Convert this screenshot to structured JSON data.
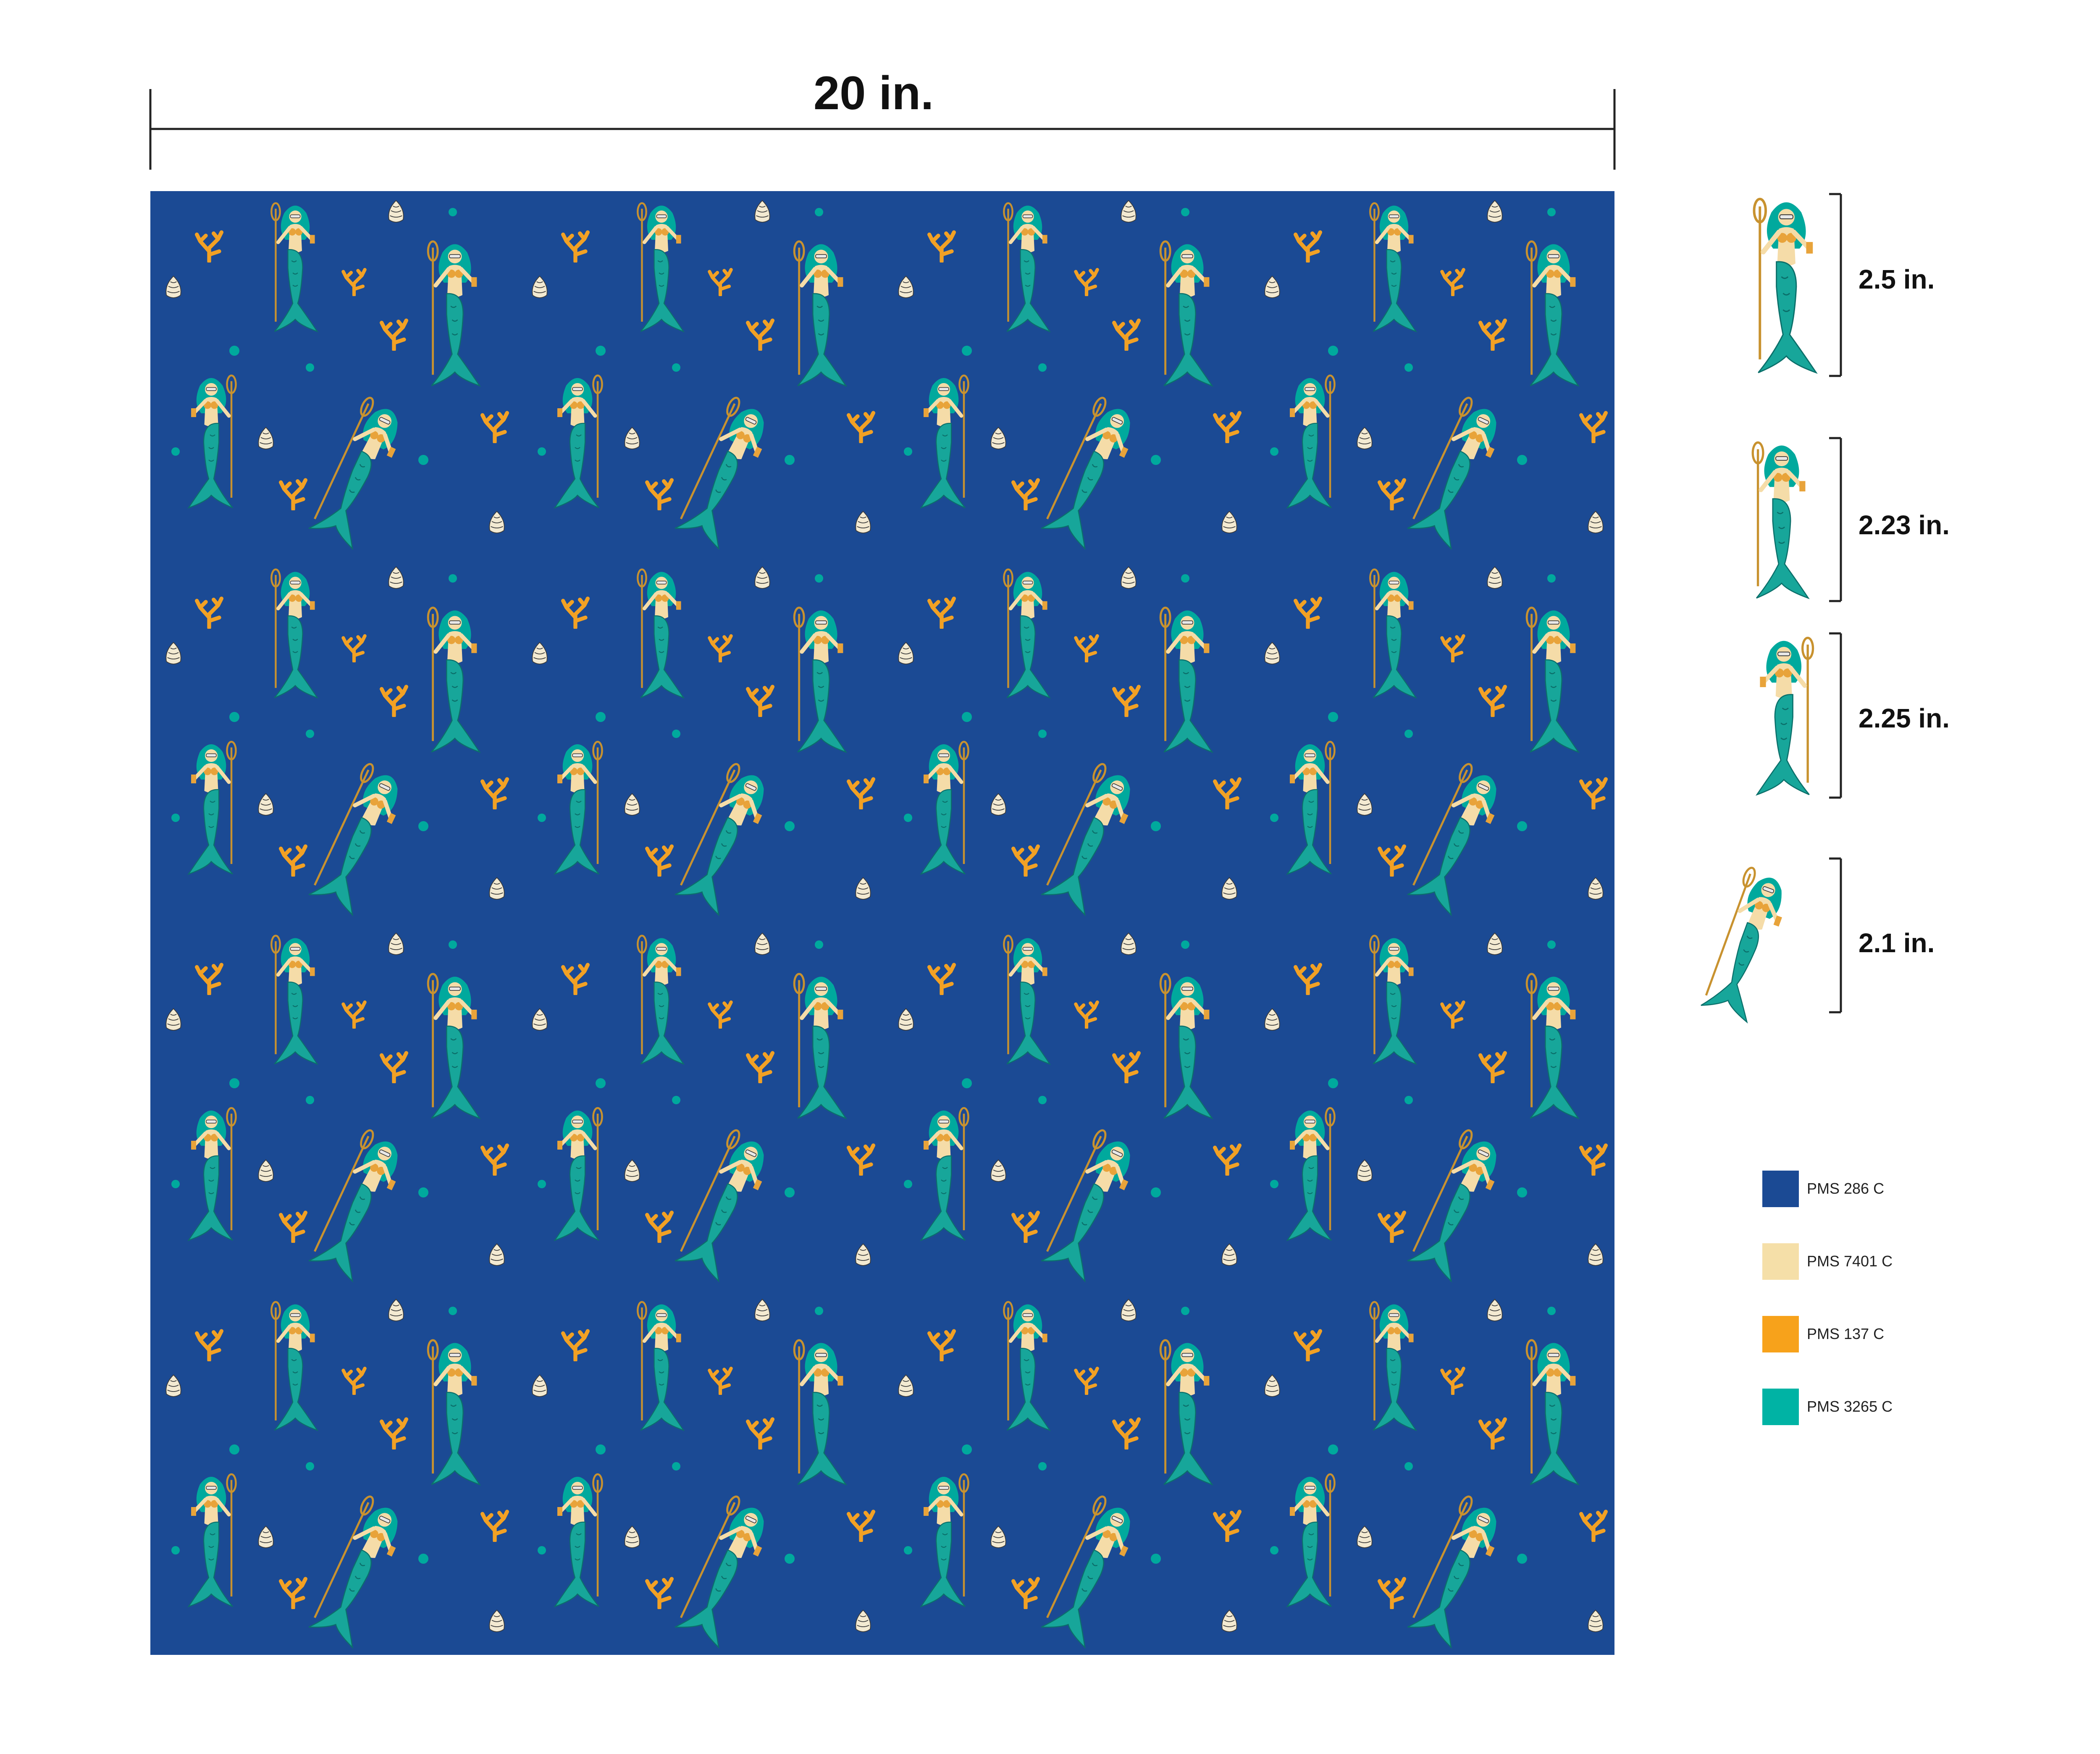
{
  "header": {
    "width_label": "20 in."
  },
  "motifs": [
    {
      "label": "2.5 in."
    },
    {
      "label": "2.23 in."
    },
    {
      "label": "2.25 in."
    },
    {
      "label": "2.1 in."
    }
  ],
  "swatches": [
    {
      "name": "PMS 286 C",
      "color": "#1b4a94"
    },
    {
      "name": "PMS 7401 C",
      "color": "#f5dfa8"
    },
    {
      "name": "PMS 137 C",
      "color": "#f7a21b"
    },
    {
      "name": "PMS 3265 C",
      "color": "#00b3a4"
    }
  ]
}
